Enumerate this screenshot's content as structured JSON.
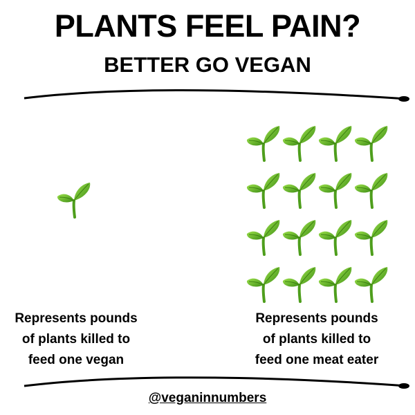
{
  "title": "PLANTS FEEL PAIN?",
  "subtitle": "BETTER GO VEGAN",
  "left": {
    "icon": "seedling-icon",
    "count": 1,
    "caption_lines": [
      "Represents pounds",
      "of plants killed to",
      "feed one vegan"
    ]
  },
  "right": {
    "icon": "seedling-icon",
    "count": 16,
    "caption_lines": [
      "Represents pounds",
      "of plants killed to",
      "feed one meat eater"
    ]
  },
  "handle": "@veganinnumbers",
  "colors": {
    "leaf": "#6cc42a",
    "leaf_dark": "#3f8f16",
    "text": "#000000"
  }
}
